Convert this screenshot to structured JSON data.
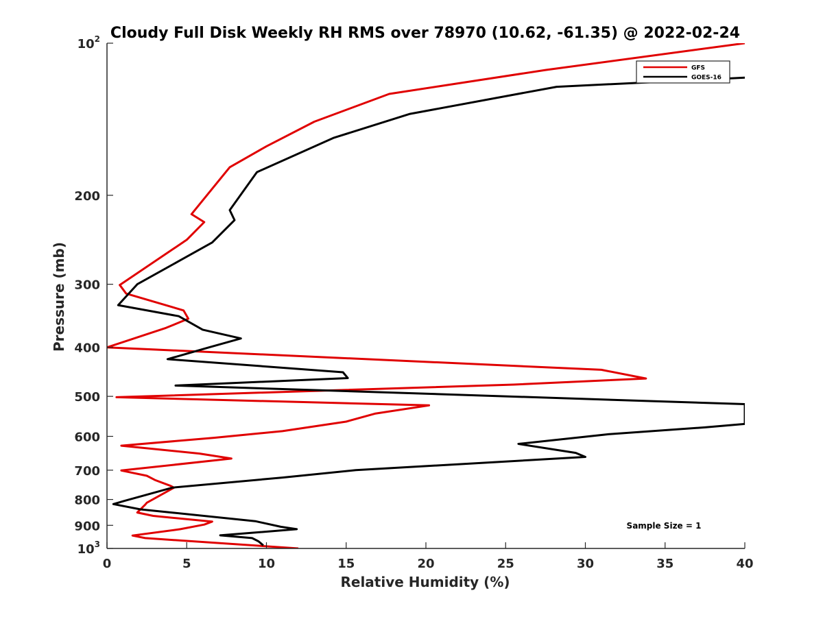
{
  "chart_data": {
    "type": "line",
    "title": "Cloudy Full Disk Weekly RH RMS over 78970 (10.62, -61.35) @ 2022-02-24",
    "xlabel": "Relative Humidity (%)",
    "ylabel": "Pressure (mb)",
    "xlim": [
      0,
      40
    ],
    "ylim": [
      100,
      1000
    ],
    "yscale": "log",
    "y_reversed": true,
    "grid": false,
    "legend_position": "top-right",
    "x_ticks": [
      {
        "value": 0,
        "label": "0"
      },
      {
        "value": 5,
        "label": "5"
      },
      {
        "value": 10,
        "label": "10"
      },
      {
        "value": 15,
        "label": "15"
      },
      {
        "value": 20,
        "label": "20"
      },
      {
        "value": 25,
        "label": "25"
      },
      {
        "value": 30,
        "label": "30"
      },
      {
        "value": 35,
        "label": "35"
      },
      {
        "value": 40,
        "label": "40"
      }
    ],
    "y_ticks": [
      {
        "value": 100,
        "base": "10",
        "exp": "2"
      },
      {
        "value": 200,
        "base": "200",
        "exp": ""
      },
      {
        "value": 300,
        "base": "300",
        "exp": ""
      },
      {
        "value": 400,
        "base": "400",
        "exp": ""
      },
      {
        "value": 500,
        "base": "500",
        "exp": ""
      },
      {
        "value": 600,
        "base": "600",
        "exp": ""
      },
      {
        "value": 700,
        "base": "700",
        "exp": ""
      },
      {
        "value": 800,
        "base": "800",
        "exp": ""
      },
      {
        "value": 900,
        "base": "900",
        "exp": ""
      },
      {
        "value": 1000,
        "base": "10",
        "exp": "3"
      }
    ],
    "annotation": "Sample Size = 1",
    "series": [
      {
        "name": "GFS",
        "color": "#e00000",
        "points": [
          [
            40,
            100
          ],
          [
            27.5,
            113
          ],
          [
            17.7,
            126
          ],
          [
            13,
            143
          ],
          [
            10,
            160
          ],
          [
            7.7,
            176
          ],
          [
            5.3,
            218
          ],
          [
            6.1,
            226
          ],
          [
            5,
            245
          ],
          [
            0.8,
            301
          ],
          [
            1.2,
            313
          ],
          [
            4.8,
            338
          ],
          [
            5.1,
            351
          ],
          [
            3.7,
            366
          ],
          [
            0,
            400
          ],
          [
            31,
            443
          ],
          [
            33.8,
            461
          ],
          [
            25.5,
            474
          ],
          [
            0.6,
            502
          ],
          [
            20.2,
            521
          ],
          [
            16.8,
            541
          ],
          [
            15,
            561
          ],
          [
            11,
            586
          ],
          [
            6.7,
            604
          ],
          [
            0.9,
            626
          ],
          [
            5.8,
            649
          ],
          [
            7.8,
            664
          ],
          [
            0.9,
            701
          ],
          [
            2.5,
            718
          ],
          [
            3,
            732
          ],
          [
            4,
            752
          ],
          [
            4.2,
            758
          ],
          [
            2.5,
            812
          ],
          [
            2.4,
            819
          ],
          [
            1.9,
            849
          ],
          [
            2.9,
            862
          ],
          [
            6.6,
            885
          ],
          [
            6.1,
            897
          ],
          [
            4.6,
            916
          ],
          [
            1.6,
            943
          ],
          [
            2.4,
            954
          ],
          [
            12,
            1000
          ]
        ]
      },
      {
        "name": "GOES-16",
        "color": "#000000",
        "points": [
          [
            40,
            117
          ],
          [
            28.2,
            122
          ],
          [
            19,
            138
          ],
          [
            14.2,
            154
          ],
          [
            9.4,
            180
          ],
          [
            7.7,
            214
          ],
          [
            8,
            224
          ],
          [
            6.6,
            248
          ],
          [
            1.9,
            300
          ],
          [
            0.7,
            330
          ],
          [
            4.5,
            347
          ],
          [
            6,
            369
          ],
          [
            8.4,
            384
          ],
          [
            6.4,
            400
          ],
          [
            3.8,
            422
          ],
          [
            14.8,
            448
          ],
          [
            15.1,
            460
          ],
          [
            4.3,
            476
          ],
          [
            40,
            518
          ],
          [
            40,
            567
          ],
          [
            37.5,
            576
          ],
          [
            31.5,
            594
          ],
          [
            25.8,
            621
          ],
          [
            29.4,
            647
          ],
          [
            30,
            659
          ],
          [
            15.6,
            700
          ],
          [
            11,
            724
          ],
          [
            4.1,
            758
          ],
          [
            1.1,
            805
          ],
          [
            0.4,
            817
          ],
          [
            2.1,
            837
          ],
          [
            4.2,
            850
          ],
          [
            9.3,
            883
          ],
          [
            10.9,
            906
          ],
          [
            11.9,
            916
          ],
          [
            7.1,
            942
          ],
          [
            9.1,
            954
          ],
          [
            9.5,
            968
          ],
          [
            9.8,
            986
          ]
        ]
      }
    ]
  }
}
